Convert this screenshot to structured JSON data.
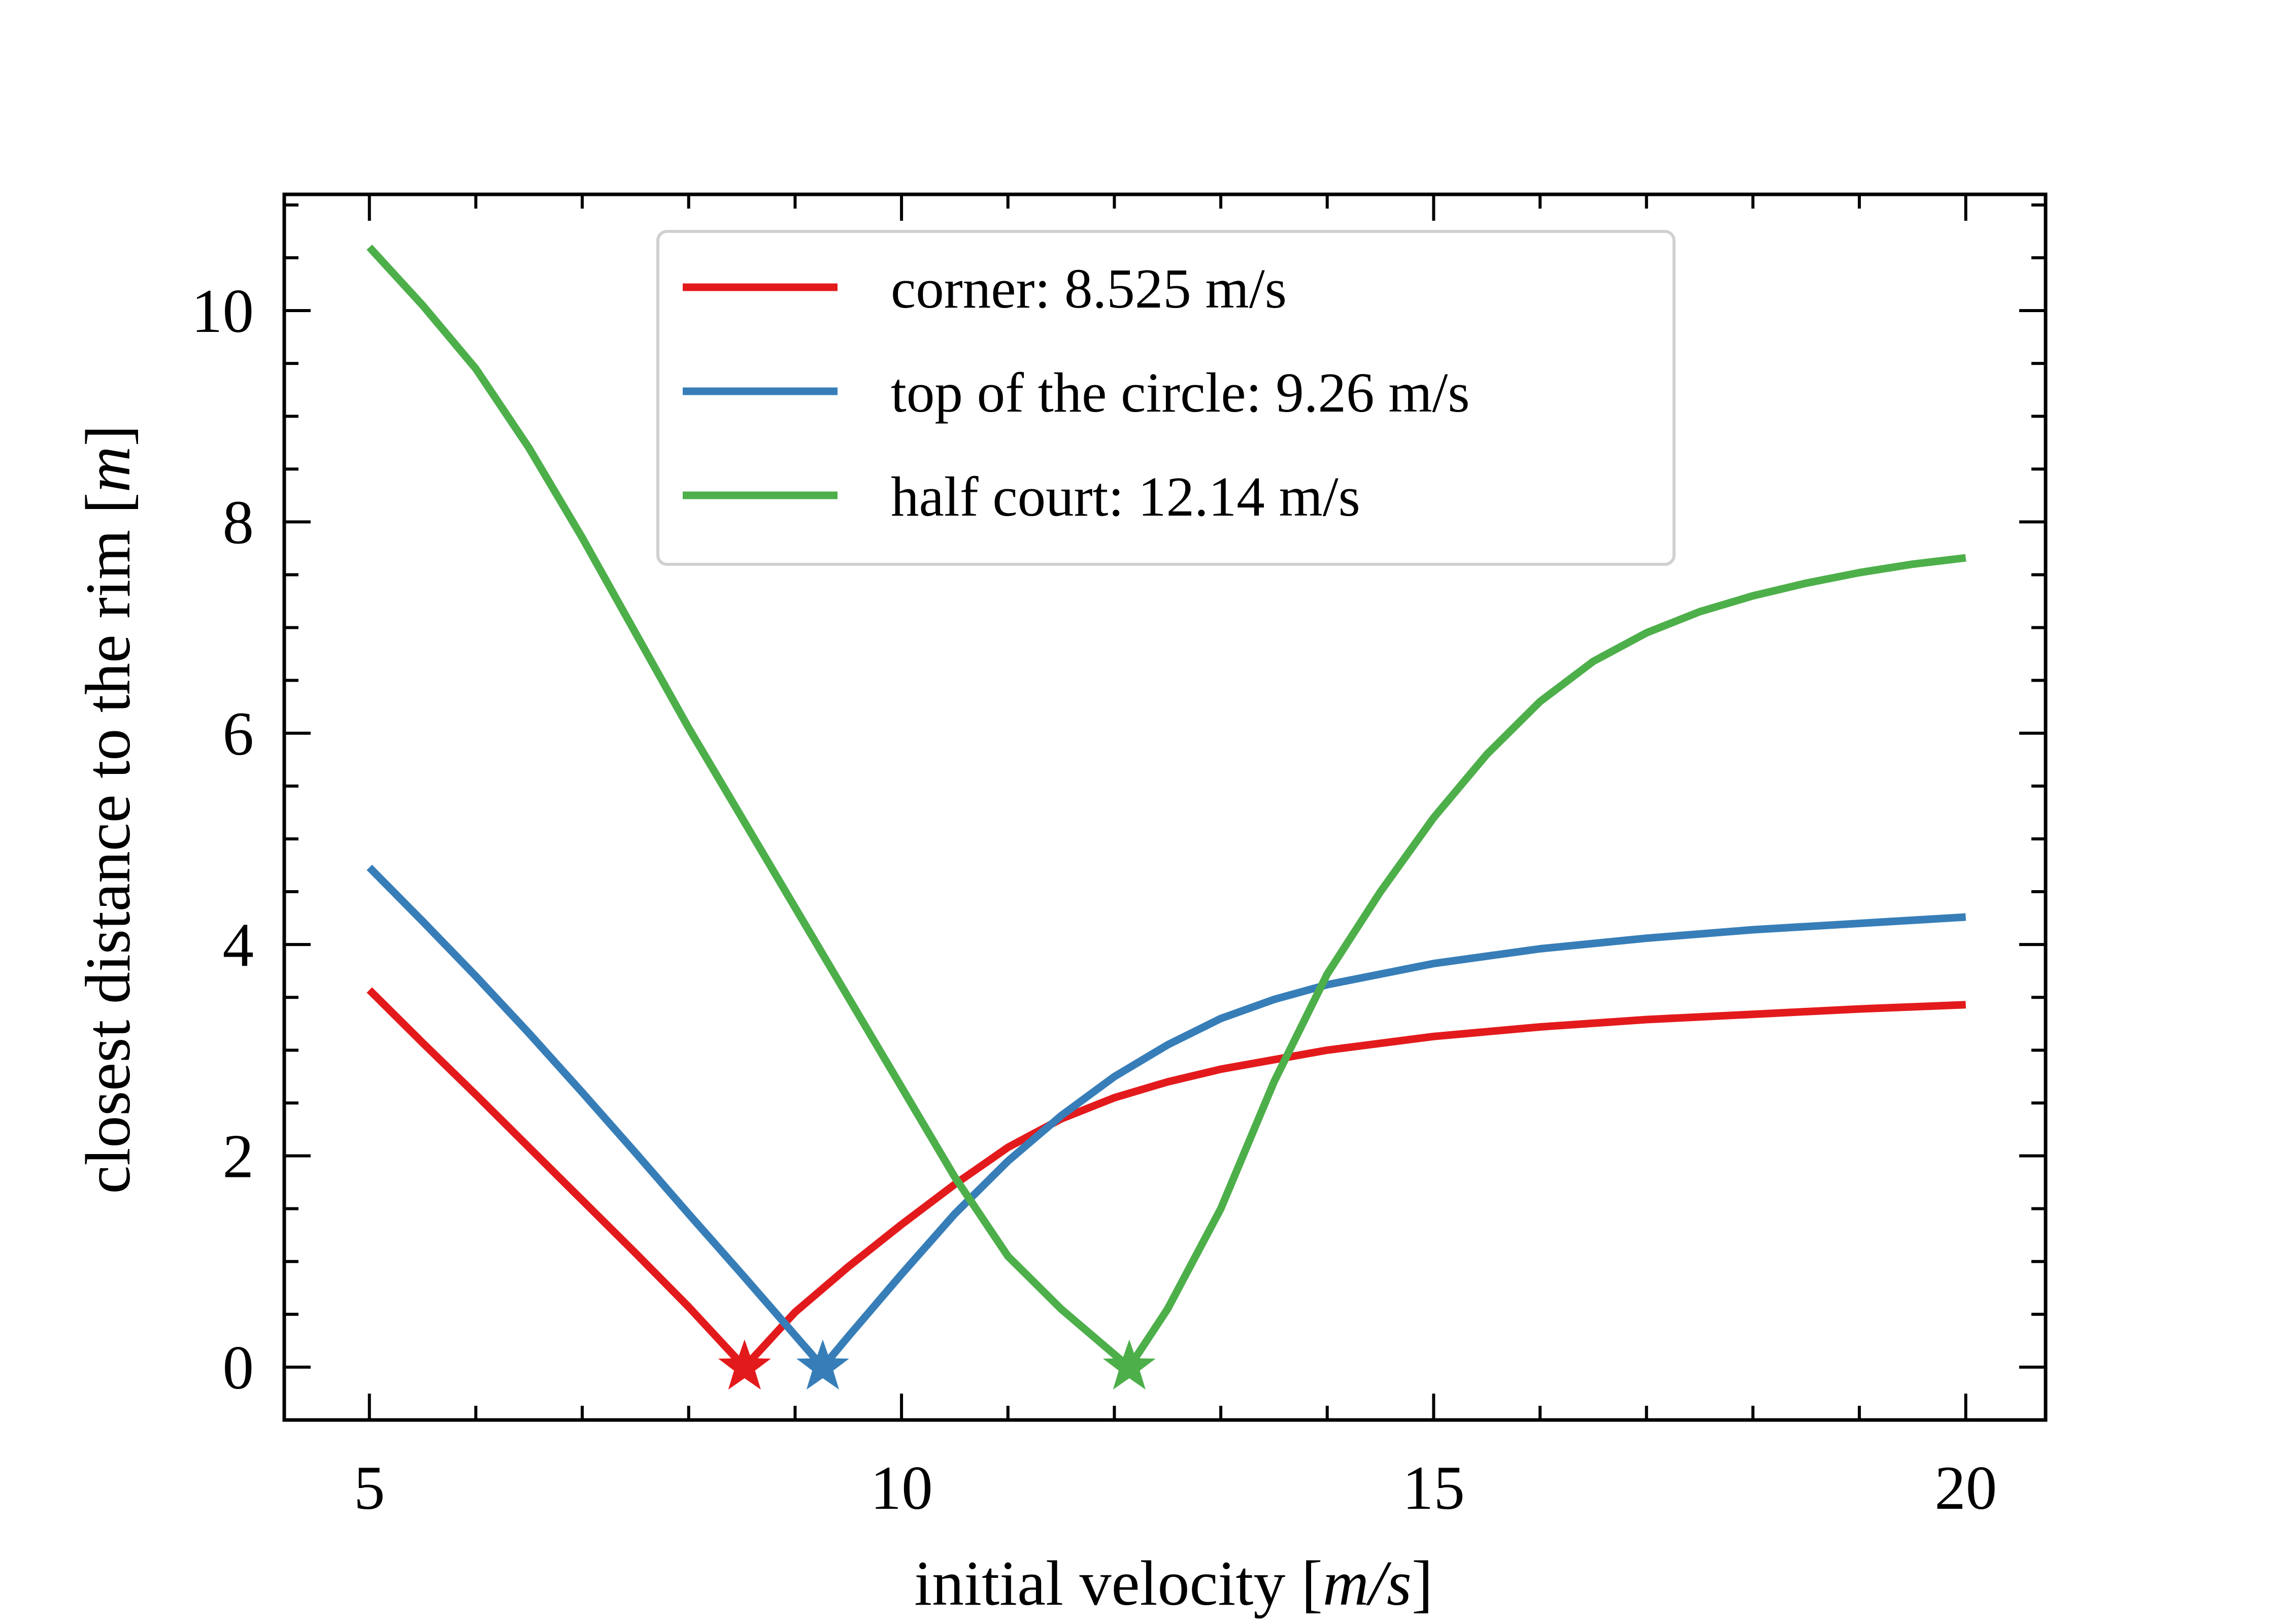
{
  "chart_data": {
    "type": "line",
    "xlabel": "initial velocity",
    "xlabel_unit": "m/s",
    "ylabel": "closest distance to the rim",
    "ylabel_unit": "m",
    "xlim": [
      4.2,
      20.75
    ],
    "ylim": [
      -0.5,
      11.1
    ],
    "x_ticks": [
      5,
      10,
      15,
      20
    ],
    "y_ticks": [
      0,
      2,
      4,
      6,
      8,
      10
    ],
    "x_minor_step": 1,
    "y_minor_step": 0.5,
    "ticks_direction": "in",
    "ticks_on_all_sides": true,
    "grid": false,
    "legend_position": "upper-center",
    "series": [
      {
        "name": "corner: 8.525 m/s",
        "color": "#e31a1c",
        "optimum_velocity": 8.525,
        "x": [
          5,
          5.5,
          6,
          6.5,
          7,
          7.5,
          8,
          8.525,
          9,
          9.5,
          10,
          10.5,
          11,
          11.5,
          12,
          12.5,
          13,
          14,
          15,
          16,
          17,
          18,
          19,
          20
        ],
        "y": [
          3.57,
          3.07,
          2.58,
          2.08,
          1.58,
          1.08,
          0.57,
          0.0,
          0.52,
          0.95,
          1.35,
          1.73,
          2.08,
          2.35,
          2.55,
          2.7,
          2.82,
          3.0,
          3.13,
          3.22,
          3.29,
          3.34,
          3.39,
          3.43
        ]
      },
      {
        "name": "top of the circle: 9.26 m/s",
        "color": "#377eb8",
        "optimum_velocity": 9.26,
        "x": [
          5,
          5.5,
          6,
          6.5,
          7,
          7.5,
          8,
          8.5,
          9.26,
          9.5,
          10,
          10.5,
          11,
          11.5,
          12,
          12.5,
          13,
          13.5,
          14,
          15,
          16,
          17,
          18,
          19,
          20
        ],
        "y": [
          4.73,
          4.22,
          3.7,
          3.16,
          2.6,
          2.03,
          1.45,
          0.88,
          0.0,
          0.29,
          0.88,
          1.45,
          1.95,
          2.38,
          2.75,
          3.05,
          3.3,
          3.48,
          3.62,
          3.82,
          3.96,
          4.06,
          4.14,
          4.2,
          4.26
        ]
      },
      {
        "name": "half court: 12.14 m/s",
        "color": "#4daf4a",
        "optimum_velocity": 12.14,
        "x": [
          5,
          5.5,
          6,
          6.5,
          7,
          7.5,
          8,
          8.5,
          9,
          9.5,
          10,
          10.5,
          11,
          11.5,
          12.14,
          12.5,
          13,
          13.5,
          14,
          14.5,
          15,
          15.5,
          16,
          16.5,
          17,
          17.5,
          18,
          18.5,
          19,
          19.5,
          20
        ],
        "y": [
          10.6,
          10.05,
          9.45,
          8.7,
          7.85,
          6.95,
          6.05,
          5.2,
          4.35,
          3.5,
          2.65,
          1.8,
          1.05,
          0.55,
          0.0,
          0.55,
          1.5,
          2.7,
          3.72,
          4.5,
          5.2,
          5.8,
          6.3,
          6.68,
          6.95,
          7.15,
          7.3,
          7.42,
          7.52,
          7.6,
          7.66
        ]
      }
    ]
  }
}
